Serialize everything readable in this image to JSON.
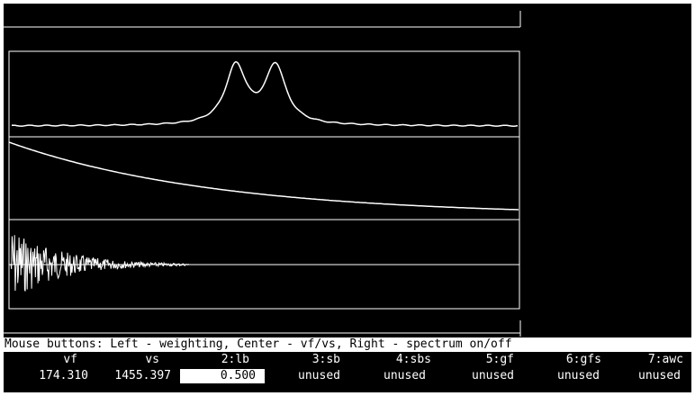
{
  "status_text": "Mouse buttons: Left - weighting, Center - vf/vs, Right - spectrum on/off",
  "params": {
    "headers": [
      "vf",
      "vs",
      "2:lb",
      "3:sb",
      "4:sbs",
      "5:gf",
      "6:gfs",
      "7:awc"
    ],
    "values": [
      "174.310",
      "1455.397",
      "0.500",
      "unused",
      "unused",
      "unused",
      "unused",
      "unused"
    ]
  },
  "colors": {
    "background": "#000000",
    "foreground": "#ffffff"
  }
}
